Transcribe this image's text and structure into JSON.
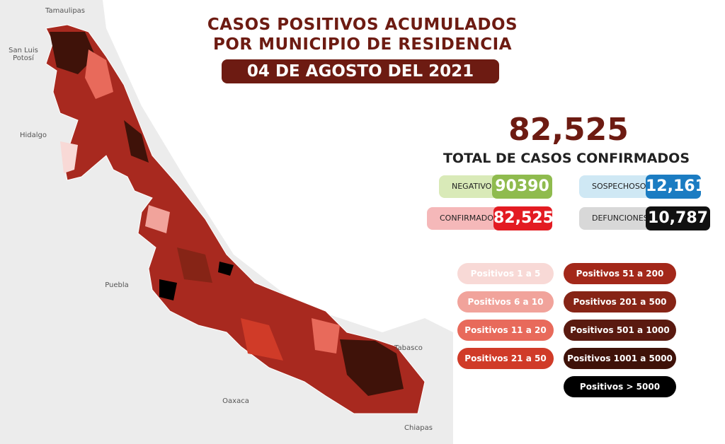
{
  "header": {
    "title": [
      "CASOS POSITIVOS ACUMULADOS",
      "POR MUNICIPIO DE RESIDENCIA"
    ],
    "date": "04 DE AGOSTO DEL 2021"
  },
  "total": {
    "value": "82,525",
    "label": "TOTAL DE CASOS CONFIRMADOS"
  },
  "stats": [
    {
      "label": "NEGATIVOS",
      "value": "90390",
      "color": "#8fbb4e",
      "light": "#d9eab8"
    },
    {
      "label": "SOSPECHOSOS",
      "value": "12,161",
      "color": "#1b7cc2",
      "light": "#cfe8f4"
    },
    {
      "label": "CONFIRMADOS",
      "value": "82,525",
      "color": "#e31b22",
      "light": "#f5b8b9"
    },
    {
      "label": "DEFUNCIONES",
      "value": "10,787",
      "color": "#111111",
      "light": "#d8d8d8"
    }
  ],
  "legend": [
    {
      "label": "Positivos 1 a 5",
      "color": "#f8d9d6"
    },
    {
      "label": "Positivos 6 a 10",
      "color": "#f1a39b"
    },
    {
      "label": "Positivos 11 a 20",
      "color": "#e86a5b"
    },
    {
      "label": "Positivos 21 a 50",
      "color": "#d03b28"
    },
    {
      "label": "Positivos 51 a 200",
      "color": "#a3281a"
    },
    {
      "label": "Positivos 201 a 500",
      "color": "#862416"
    },
    {
      "label": "Positivos 501 a 1000",
      "color": "#5a1a10"
    },
    {
      "label": "Positivos 1001 a 5000",
      "color": "#3f1209"
    },
    {
      "label": "Positivos > 5000",
      "color": "#000000"
    }
  ],
  "map_labels": [
    "Tamaulipas",
    "San Luis Potosí",
    "Hidalgo",
    "Puebla",
    "Oaxaca",
    "Tabasco",
    "Chiapas"
  ]
}
